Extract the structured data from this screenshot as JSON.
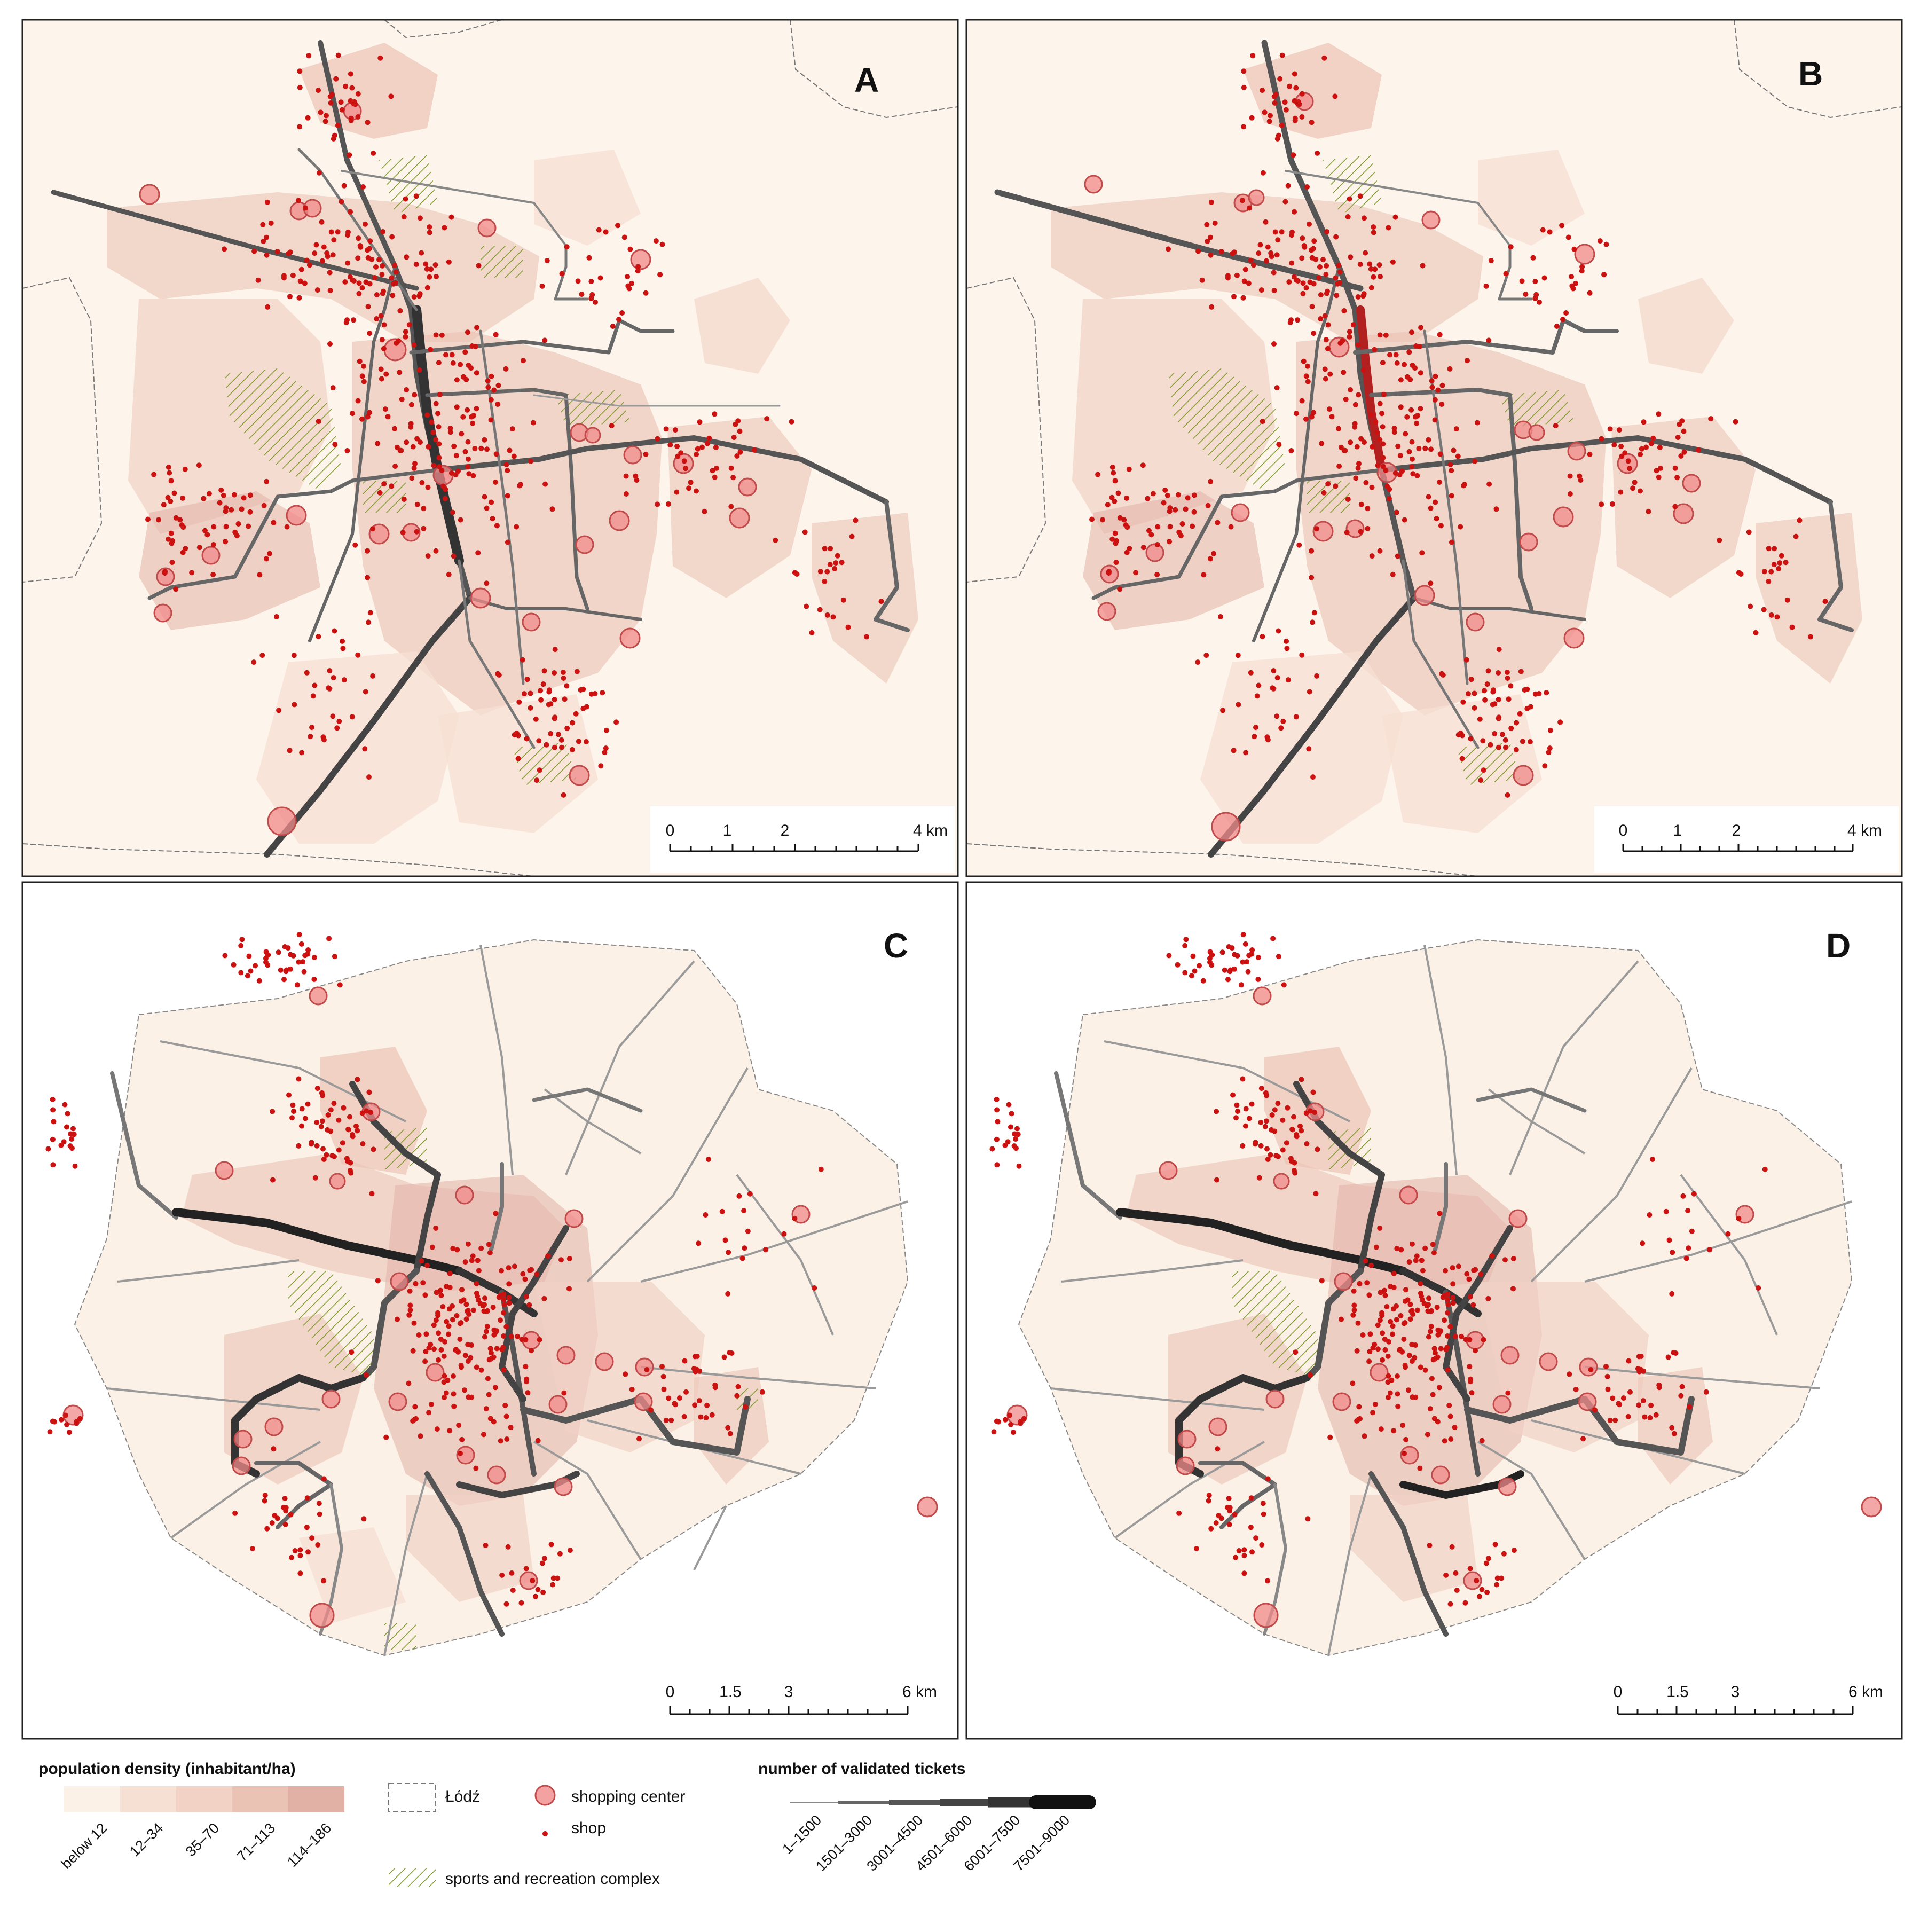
{
  "panels": [
    {
      "letter": "A",
      "scale_ticks": [
        "0",
        "1",
        "2",
        "4 km"
      ]
    },
    {
      "letter": "B",
      "scale_ticks": [
        "0",
        "1",
        "2",
        "4 km"
      ]
    },
    {
      "letter": "C",
      "scale_ticks": [
        "0",
        "1.5",
        "3",
        "6 km"
      ]
    },
    {
      "letter": "D",
      "scale_ticks": [
        "0",
        "1.5",
        "3",
        "6 km"
      ]
    }
  ],
  "legend": {
    "population_density": {
      "title": "population density (inhabitant/ha)",
      "classes": [
        {
          "label": "below 12",
          "color": "#fbf1e6"
        },
        {
          "label": "12–34",
          "color": "#f6e0d3"
        },
        {
          "label": "35–70",
          "color": "#f1d2c4"
        },
        {
          "label": "71–113",
          "color": "#ebc3b5"
        },
        {
          "label": "114–186",
          "color": "#e2b1a5"
        }
      ]
    },
    "boundary": {
      "label": "Łódź"
    },
    "shopping_center": {
      "label": "shopping center",
      "color": "#f08a8a"
    },
    "shop": {
      "label": "shop",
      "color": "#cc1111"
    },
    "sports": {
      "label": "sports and recreation complex",
      "color": "#8a9a3a"
    },
    "tickets": {
      "title": "number of validated tickets",
      "classes": [
        {
          "label": "1–1500"
        },
        {
          "label": "1501–3000"
        },
        {
          "label": "3001–4500"
        },
        {
          "label": "4501–6000"
        },
        {
          "label": "6001–7500"
        },
        {
          "label": "7501–9000"
        }
      ]
    }
  }
}
